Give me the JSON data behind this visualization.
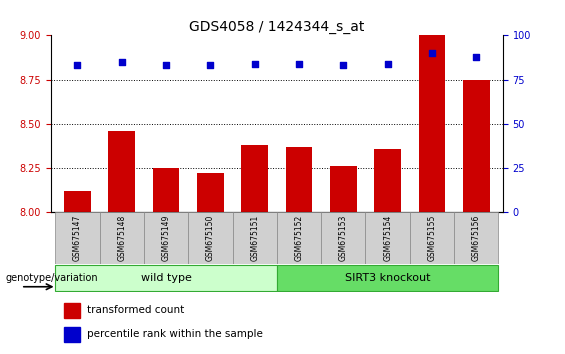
{
  "title": "GDS4058 / 1424344_s_at",
  "samples": [
    "GSM675147",
    "GSM675148",
    "GSM675149",
    "GSM675150",
    "GSM675151",
    "GSM675152",
    "GSM675153",
    "GSM675154",
    "GSM675155",
    "GSM675156"
  ],
  "bar_values": [
    8.12,
    8.46,
    8.25,
    8.22,
    8.38,
    8.37,
    8.26,
    8.36,
    9.0,
    8.75
  ],
  "percentile_values": [
    83,
    85,
    83,
    83,
    84,
    84,
    83,
    84,
    90,
    88
  ],
  "bar_color": "#cc0000",
  "dot_color": "#0000cc",
  "ylim_left": [
    8.0,
    9.0
  ],
  "ylim_right": [
    0,
    100
  ],
  "yticks_left": [
    8.0,
    8.25,
    8.5,
    8.75,
    9.0
  ],
  "yticks_right": [
    0,
    25,
    50,
    75,
    100
  ],
  "grid_lines": [
    8.25,
    8.5,
    8.75
  ],
  "wild_type_count": 5,
  "knockout_count": 5,
  "wild_type_label": "wild type",
  "knockout_label": "SIRT3 knockout",
  "wt_facecolor": "#ccffcc",
  "ko_facecolor": "#66dd66",
  "group_edgecolor": "#33aa33",
  "sample_box_color": "#d0d0d0",
  "legend_bar_label": "transformed count",
  "legend_dot_label": "percentile rank within the sample",
  "genotype_label": "genotype/variation",
  "title_fontsize": 10,
  "tick_fontsize": 7,
  "sample_fontsize": 5.5,
  "group_fontsize": 8,
  "legend_fontsize": 7.5,
  "geno_fontsize": 7
}
